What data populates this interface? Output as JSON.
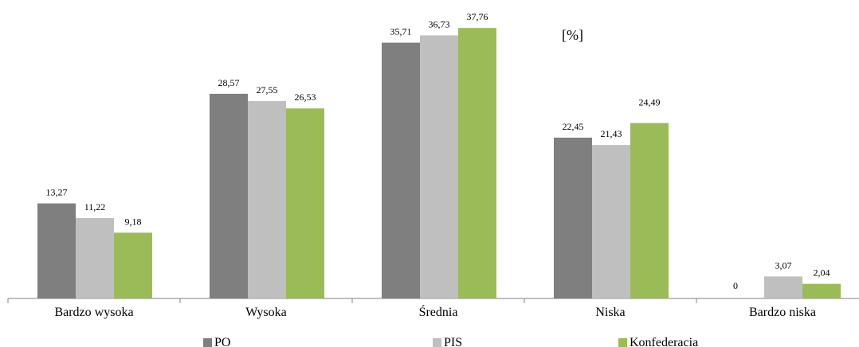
{
  "chart_data": {
    "type": "bar",
    "unit_label": "[%]",
    "categories": [
      "Bardzo wysoka",
      "Wysoka",
      "Średnia",
      "Niska",
      "Bardzo niska"
    ],
    "series": [
      {
        "name": "PO",
        "values": [
          13.27,
          28.57,
          35.71,
          22.45,
          0
        ],
        "labels": [
          "13,27",
          "28,57",
          "35,71",
          "22,45",
          "0"
        ],
        "color": "#7f7f7f"
      },
      {
        "name": "PIS",
        "values": [
          11.22,
          27.55,
          36.73,
          21.43,
          3.07
        ],
        "labels": [
          "11,22",
          "27,55",
          "36,73",
          "21,43",
          "3,07"
        ],
        "color": "#bfbfbf"
      },
      {
        "name": "Konfederacia",
        "values": [
          9.18,
          26.53,
          37.76,
          24.49,
          2.04
        ],
        "labels": [
          "9,18",
          "26,53",
          "37,76",
          "24,49",
          "2,04"
        ],
        "color": "#9bbb59"
      }
    ],
    "ylim": [
      0,
      40
    ],
    "grid": false,
    "legend_position": "bottom"
  }
}
